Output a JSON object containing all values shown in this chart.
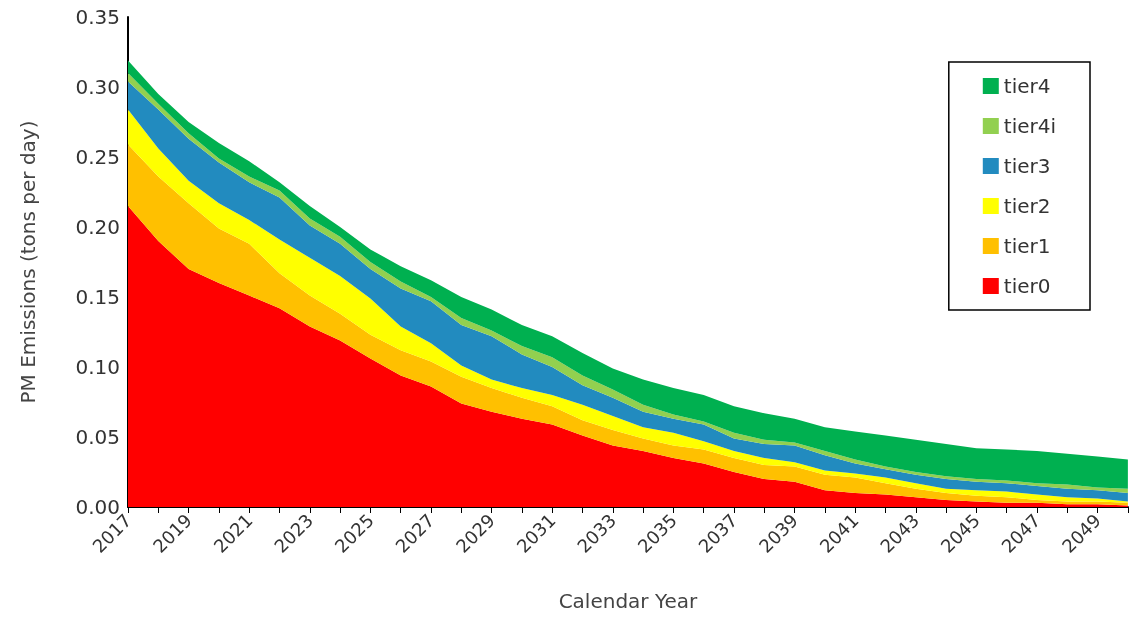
{
  "chart_data": {
    "type": "area",
    "stacked": true,
    "xlabel": "Calendar Year",
    "ylabel": "PM Emissions (tons per day)",
    "categories": [
      "2017",
      null,
      "2019",
      null,
      "2021",
      null,
      "2023",
      null,
      "2025",
      null,
      "2027",
      null,
      "2029",
      null,
      "2031",
      null,
      "2033",
      null,
      "2035",
      null,
      "2037",
      null,
      "2039",
      null,
      "2041",
      null,
      "2043",
      null,
      "2045",
      null,
      "2047",
      null,
      "2049",
      null
    ],
    "ylim": [
      0,
      0.35
    ],
    "yticks": [
      {
        "value": 0,
        "label": "0.00"
      },
      {
        "value": 0.05,
        "label": "0.05"
      },
      {
        "value": 0.1,
        "label": "0.10"
      },
      {
        "value": 0.15,
        "label": "0.15"
      },
      {
        "value": 0.2,
        "label": "0.20"
      },
      {
        "value": 0.25,
        "label": "0.25"
      },
      {
        "value": 0.3,
        "label": "0.30"
      },
      {
        "value": 0.35,
        "label": "0.35"
      }
    ],
    "grid": false,
    "legend": "top right",
    "series": [
      {
        "name": "tier0",
        "color": "#ff0000",
        "values": [
          0.215,
          0.19,
          0.17,
          0.16,
          0.151,
          0.142,
          0.129,
          0.119,
          0.106,
          0.094,
          0.086,
          0.074,
          0.068,
          0.063,
          0.059,
          0.051,
          0.044,
          0.04,
          0.035,
          0.031,
          0.025,
          0.02,
          0.018,
          0.012,
          0.01,
          0.009,
          0.007,
          0.005,
          0.004,
          0.003,
          0.003,
          0.002,
          0.002,
          0.001
        ]
      },
      {
        "name": "tier1",
        "color": "#ffc000",
        "values": [
          0.044,
          0.046,
          0.047,
          0.039,
          0.037,
          0.025,
          0.022,
          0.019,
          0.017,
          0.018,
          0.018,
          0.019,
          0.017,
          0.015,
          0.013,
          0.011,
          0.011,
          0.009,
          0.009,
          0.01,
          0.01,
          0.01,
          0.011,
          0.011,
          0.011,
          0.008,
          0.006,
          0.005,
          0.004,
          0.004,
          0.002,
          0.002,
          0.002,
          0.002
        ]
      },
      {
        "name": "tier2",
        "color": "#ffff00",
        "values": [
          0.025,
          0.02,
          0.016,
          0.018,
          0.017,
          0.024,
          0.027,
          0.027,
          0.026,
          0.017,
          0.013,
          0.008,
          0.006,
          0.007,
          0.008,
          0.011,
          0.01,
          0.008,
          0.009,
          0.006,
          0.005,
          0.005,
          0.003,
          0.003,
          0.003,
          0.004,
          0.004,
          0.003,
          0.004,
          0.004,
          0.004,
          0.003,
          0.002,
          0.001
        ]
      },
      {
        "name": "tier3",
        "color": "#228bbf",
        "values": [
          0.02,
          0.028,
          0.03,
          0.029,
          0.027,
          0.03,
          0.023,
          0.023,
          0.021,
          0.027,
          0.03,
          0.029,
          0.031,
          0.024,
          0.02,
          0.014,
          0.013,
          0.011,
          0.01,
          0.012,
          0.009,
          0.01,
          0.012,
          0.011,
          0.007,
          0.006,
          0.006,
          0.007,
          0.006,
          0.006,
          0.006,
          0.006,
          0.006,
          0.006
        ]
      },
      {
        "name": "tier4i",
        "color": "#92d050",
        "values": [
          0.006,
          0.004,
          0.004,
          0.003,
          0.004,
          0.005,
          0.005,
          0.005,
          0.005,
          0.005,
          0.003,
          0.005,
          0.004,
          0.006,
          0.007,
          0.007,
          0.006,
          0.005,
          0.003,
          0.002,
          0.004,
          0.003,
          0.002,
          0.003,
          0.003,
          0.002,
          0.002,
          0.002,
          0.002,
          0.002,
          0.002,
          0.003,
          0.002,
          0.003
        ]
      },
      {
        "name": "tier4",
        "color": "#00b050",
        "values": [
          0.009,
          0.007,
          0.008,
          0.011,
          0.011,
          0.006,
          0.009,
          0.007,
          0.009,
          0.011,
          0.012,
          0.015,
          0.015,
          0.015,
          0.015,
          0.016,
          0.015,
          0.018,
          0.019,
          0.019,
          0.019,
          0.019,
          0.017,
          0.017,
          0.02,
          0.022,
          0.023,
          0.023,
          0.022,
          0.022,
          0.023,
          0.022,
          0.022,
          0.021
        ]
      }
    ]
  }
}
